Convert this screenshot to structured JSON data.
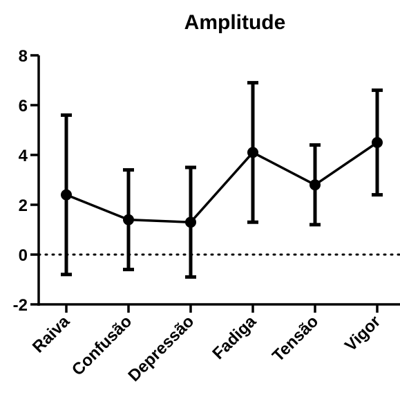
{
  "chart_data": {
    "type": "line",
    "title": "Amplitude",
    "xlabel": "",
    "ylabel": "",
    "categories": [
      "Raiva",
      "Confusão",
      "Depressão",
      "Fadiga",
      "Tensão",
      "Vigor"
    ],
    "series": [
      {
        "values": [
          2.4,
          1.4,
          1.3,
          4.1,
          2.8,
          4.5
        ],
        "error_low": [
          -0.8,
          -0.6,
          -0.9,
          1.3,
          1.2,
          2.4
        ],
        "error_high": [
          5.6,
          3.4,
          3.5,
          6.9,
          4.4,
          6.6
        ]
      }
    ],
    "ylim": [
      -2,
      8
    ],
    "yticks": [
      -2,
      0,
      2,
      4,
      6,
      8
    ],
    "reference_line": {
      "y": 0,
      "style": "dotted"
    },
    "grid": false,
    "color": "#000000"
  }
}
